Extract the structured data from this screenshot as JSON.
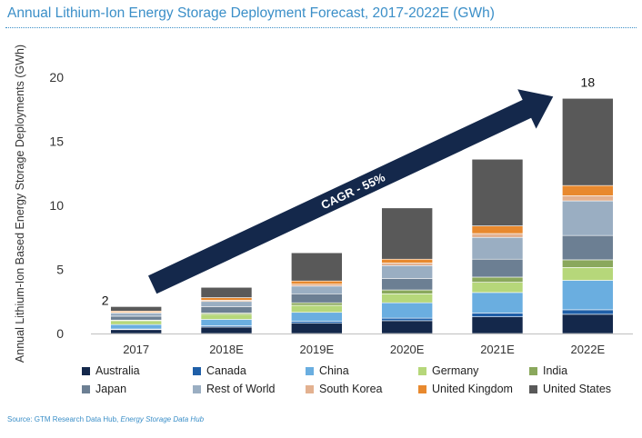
{
  "title": "Annual Lithium-Ion Energy Storage Deployment Forecast, 2017-2022E (GWh)",
  "source": {
    "prefix": "Source: GTM Research Data Hub, ",
    "italic": "Energy Storage Data Hub"
  },
  "colors": {
    "Australia": "#14284b",
    "Canada": "#1f5fa8",
    "China": "#6aaee0",
    "Germany": "#b6d77a",
    "India": "#8aa85c",
    "Japan": "#6c7f93",
    "Rest of World": "#9aaec2",
    "South Korea": "#e3b190",
    "United Kingdom": "#e8892e",
    "United States": "#595959",
    "arrow": "#14284b"
  },
  "chart_data": {
    "type": "bar",
    "stacked": true,
    "categories": [
      "2017",
      "2018E",
      "2019E",
      "2020E",
      "2021E",
      "2022E"
    ],
    "ylabel": "Annual Lithium-Ion Based Energy Storage Deployments (GWh)",
    "ylim": [
      0,
      20
    ],
    "yticks": [
      0,
      5,
      10,
      15,
      20
    ],
    "series": [
      {
        "name": "Australia",
        "values": [
          0.3,
          0.5,
          0.8,
          1.0,
          1.3,
          1.5
        ]
      },
      {
        "name": "Canada",
        "values": [
          0.05,
          0.1,
          0.15,
          0.2,
          0.3,
          0.35
        ]
      },
      {
        "name": "China",
        "values": [
          0.35,
          0.5,
          0.7,
          1.2,
          1.6,
          2.3
        ]
      },
      {
        "name": "Germany",
        "values": [
          0.3,
          0.4,
          0.55,
          0.7,
          0.8,
          1.0
        ]
      },
      {
        "name": "India",
        "values": [
          0.05,
          0.1,
          0.2,
          0.3,
          0.4,
          0.6
        ]
      },
      {
        "name": "Japan",
        "values": [
          0.3,
          0.5,
          0.7,
          0.9,
          1.4,
          1.9
        ]
      },
      {
        "name": "Rest of World",
        "values": [
          0.25,
          0.4,
          0.6,
          1.0,
          1.7,
          2.7
        ]
      },
      {
        "name": "South Korea",
        "values": [
          0.05,
          0.1,
          0.15,
          0.2,
          0.3,
          0.4
        ]
      },
      {
        "name": "United Kingdom",
        "values": [
          0.1,
          0.2,
          0.25,
          0.3,
          0.6,
          0.8
        ]
      },
      {
        "name": "United States",
        "values": [
          0.35,
          0.8,
          2.2,
          4.0,
          5.2,
          6.8
        ]
      }
    ],
    "data_labels": [
      {
        "category": "2017",
        "text": "2"
      },
      {
        "category": "2022E",
        "text": "18"
      }
    ],
    "annotation": {
      "text": "CAGR - 55%",
      "shape": "arrow",
      "from_category": "2017",
      "to_category": "2022E"
    },
    "legend": {
      "position": "bottom",
      "columns": 5
    }
  }
}
